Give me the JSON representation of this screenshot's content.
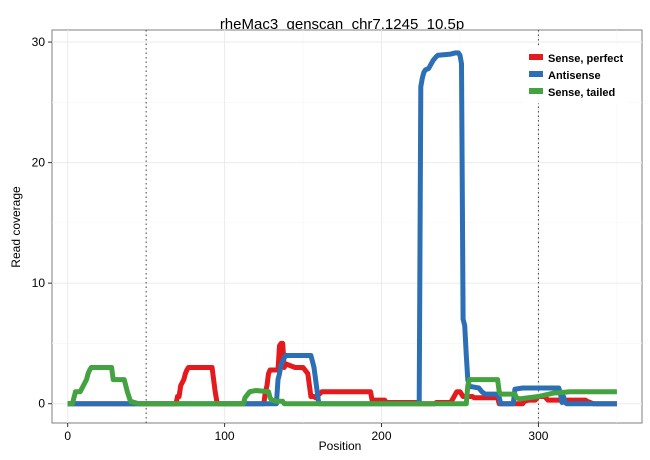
{
  "chart_data": {
    "type": "line",
    "title": "rheMac3_genscan_chr7.1245_10.5p",
    "xlabel": "Position",
    "ylabel": "Read coverage",
    "xlim": [
      -10,
      366
    ],
    "ylim": [
      -1.6,
      31
    ],
    "xticks": [
      0,
      100,
      200,
      300
    ],
    "yticks": [
      0,
      10,
      20,
      30
    ],
    "grid": true,
    "legend_position": "top-right",
    "vlines": [
      50,
      300
    ],
    "series": [
      {
        "name": "Sense, perfect",
        "color": "#e41a1c",
        "points": [
          [
            0,
            0
          ],
          [
            69,
            0
          ],
          [
            70,
            0.6
          ],
          [
            71,
            0.6
          ],
          [
            72,
            1.5
          ],
          [
            74,
            2.0
          ],
          [
            75,
            2.5
          ],
          [
            76,
            2.8
          ],
          [
            77,
            3.0
          ],
          [
            92,
            3.0
          ],
          [
            93,
            2.0
          ],
          [
            94,
            1.0
          ],
          [
            95,
            0.2
          ],
          [
            96,
            0
          ],
          [
            125,
            0
          ],
          [
            126,
            1.0
          ],
          [
            127,
            1.5
          ],
          [
            128,
            2.5
          ],
          [
            129,
            2.8
          ],
          [
            134,
            2.8
          ],
          [
            135,
            4.8
          ],
          [
            136,
            5.0
          ],
          [
            137,
            5.0
          ],
          [
            138,
            3.0
          ],
          [
            139,
            3.3
          ],
          [
            145,
            3.0
          ],
          [
            150,
            3.0
          ],
          [
            153,
            2.5
          ],
          [
            155,
            0.6
          ],
          [
            157,
            0.6
          ],
          [
            158,
            0.5
          ],
          [
            162,
            1.0
          ],
          [
            168,
            1.0
          ],
          [
            177,
            1.0
          ],
          [
            178,
            1.0
          ],
          [
            193,
            1.0
          ],
          [
            194,
            0.3
          ],
          [
            202,
            0.3
          ],
          [
            203,
            0.1
          ],
          [
            222,
            0.1
          ],
          [
            224,
            0
          ],
          [
            234,
            0
          ],
          [
            235,
            0.1
          ],
          [
            244,
            0.1
          ],
          [
            245,
            0.3
          ],
          [
            248,
            1.0
          ],
          [
            250,
            1.0
          ],
          [
            252,
            0.6
          ],
          [
            258,
            0.6
          ],
          [
            259,
            0.5
          ],
          [
            274,
            0.5
          ],
          [
            275,
            0
          ],
          [
            290,
            0
          ],
          [
            291,
            0.2
          ],
          [
            294,
            0.3
          ],
          [
            298,
            0.3
          ],
          [
            300,
            0.6
          ],
          [
            304,
            0.6
          ],
          [
            306,
            0.3
          ],
          [
            330,
            0.3
          ],
          [
            331,
            0.2
          ],
          [
            335,
            0
          ],
          [
            350,
            0
          ]
        ]
      },
      {
        "name": "Antisense",
        "color": "#2d6fb4",
        "points": [
          [
            0,
            0
          ],
          [
            133,
            0
          ],
          [
            134,
            2.0
          ],
          [
            135,
            2.5
          ],
          [
            136,
            3.2
          ],
          [
            137,
            3.5
          ],
          [
            138,
            3.8
          ],
          [
            139,
            4.0
          ],
          [
            155,
            4.0
          ],
          [
            156,
            3.5
          ],
          [
            157,
            3.0
          ],
          [
            158,
            2.0
          ],
          [
            159,
            1.0
          ],
          [
            160,
            0
          ],
          [
            224,
            0
          ],
          [
            225,
            26.3
          ],
          [
            226,
            27.0
          ],
          [
            227,
            27.5
          ],
          [
            228,
            27.7
          ],
          [
            230,
            27.8
          ],
          [
            233,
            28.5
          ],
          [
            235,
            28.8
          ],
          [
            236,
            28.9
          ],
          [
            244,
            29.0
          ],
          [
            247,
            29.1
          ],
          [
            249,
            29.1
          ],
          [
            250,
            28.9
          ],
          [
            251,
            28.2
          ],
          [
            252,
            7.0
          ],
          [
            253,
            6.5
          ],
          [
            254,
            4.0
          ],
          [
            255,
            2.0
          ],
          [
            256,
            1.4
          ],
          [
            258,
            1.4
          ],
          [
            262,
            1.3
          ],
          [
            264,
            1.0
          ],
          [
            266,
            0.8
          ],
          [
            274,
            0.8
          ],
          [
            275,
            0.5
          ],
          [
            276,
            0
          ],
          [
            284,
            0
          ],
          [
            285,
            1.2
          ],
          [
            290,
            1.3
          ],
          [
            303,
            1.3
          ],
          [
            313,
            1.3
          ],
          [
            314,
            0.9
          ],
          [
            315,
            0.1
          ],
          [
            316,
            0.6
          ],
          [
            317,
            0.1
          ],
          [
            318,
            0
          ],
          [
            350,
            0
          ]
        ]
      },
      {
        "name": "Sense, tailed",
        "color": "#44a340",
        "points": [
          [
            0,
            0
          ],
          [
            3,
            0
          ],
          [
            5,
            1.0
          ],
          [
            8,
            1.0
          ],
          [
            10,
            1.5
          ],
          [
            12,
            2.0
          ],
          [
            13,
            2.5
          ],
          [
            14,
            2.8
          ],
          [
            15,
            3.0
          ],
          [
            28,
            3.0
          ],
          [
            29,
            2.0
          ],
          [
            36,
            2.0
          ],
          [
            37,
            1.5
          ],
          [
            38,
            1.0
          ],
          [
            40,
            0.2
          ],
          [
            45,
            0
          ],
          [
            112,
            0
          ],
          [
            113,
            0.5
          ],
          [
            116,
            1.0
          ],
          [
            120,
            1.1
          ],
          [
            128,
            1.0
          ],
          [
            129,
            0.5
          ],
          [
            130,
            0.3
          ],
          [
            133,
            0.2
          ],
          [
            137,
            0.2
          ],
          [
            138,
            0
          ],
          [
            254,
            0
          ],
          [
            255,
            1.5
          ],
          [
            256,
            2.0
          ],
          [
            274,
            2.0
          ],
          [
            275,
            1.0
          ],
          [
            276,
            0.8
          ],
          [
            285,
            0.8
          ],
          [
            286,
            0.5
          ],
          [
            288,
            0.4
          ],
          [
            300,
            0.6
          ],
          [
            310,
            0.9
          ],
          [
            312,
            0.9
          ],
          [
            320,
            1.0
          ],
          [
            350,
            1.0
          ]
        ]
      }
    ]
  }
}
